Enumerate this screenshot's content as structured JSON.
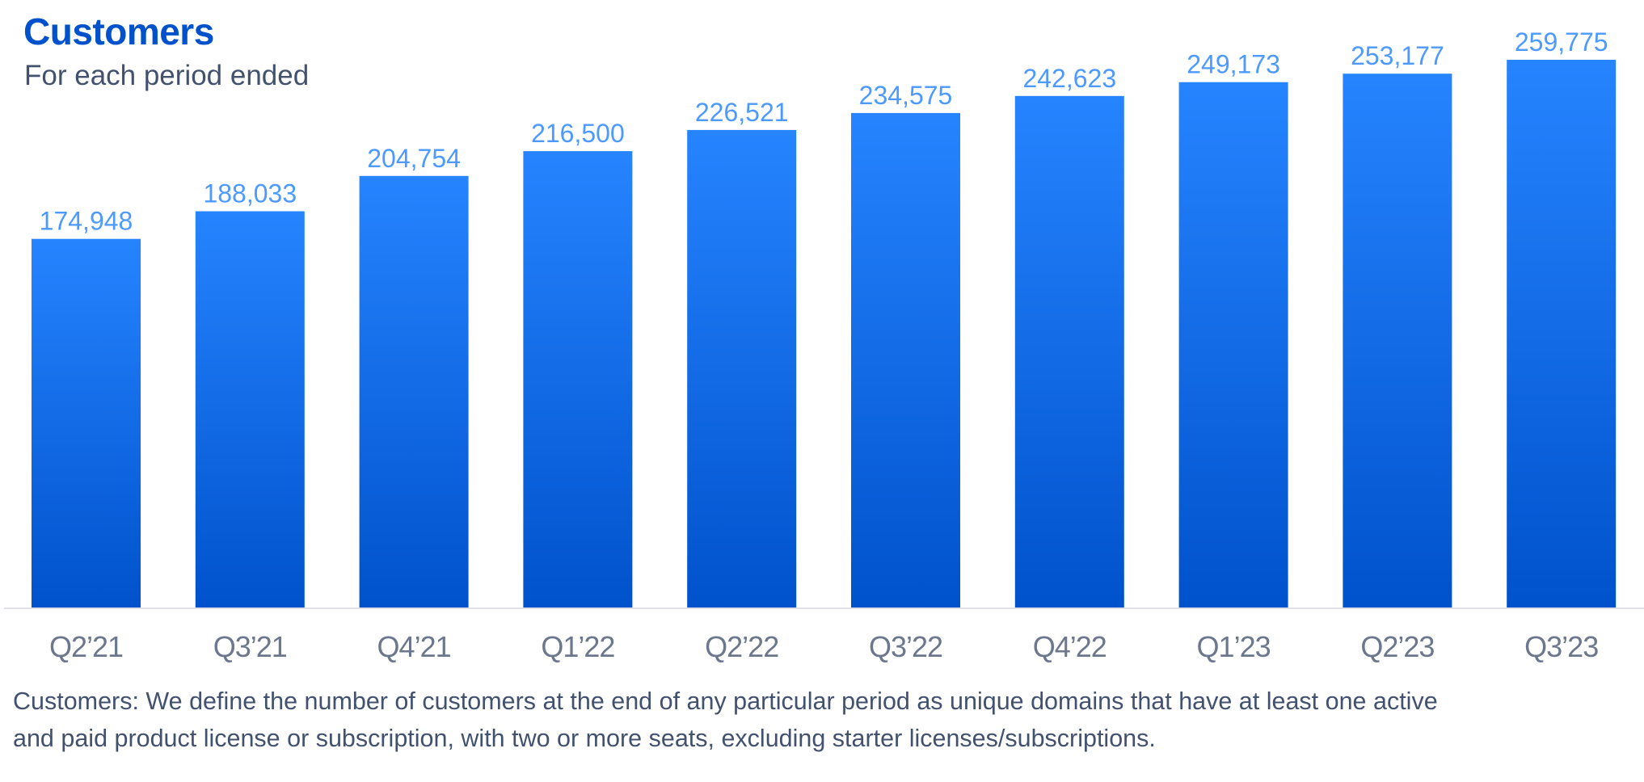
{
  "header": {
    "title": "Customers",
    "subtitle": "For each period ended"
  },
  "footnote": {
    "line1": "Customers: We define the number of customers at the end of any particular period as unique domains that have at least one active",
    "line2": "and paid product license or subscription, with two or more seats, excluding starter licenses/subscriptions."
  },
  "colors": {
    "title": "#0052CC",
    "bar_top": "#2684FF",
    "bar_bottom": "#0052CC",
    "value_label": "#4C9AFF",
    "tick_label": "#6B778C",
    "axis_line": "#DFE1E6",
    "footnote": "#42526E"
  },
  "chart_data": {
    "type": "bar",
    "title": "Customers",
    "subtitle": "For each period ended",
    "xlabel": "",
    "ylabel": "",
    "ylim": [
      0,
      260000
    ],
    "grid": false,
    "legend": "none",
    "categories": [
      "Q2’21",
      "Q3’21",
      "Q4’21",
      "Q1’22",
      "Q2’22",
      "Q3’22",
      "Q4’22",
      "Q1’23",
      "Q2’23",
      "Q3’23"
    ],
    "values": [
      174948,
      188033,
      204754,
      216500,
      226521,
      234575,
      242623,
      249173,
      253177,
      259775
    ],
    "value_labels": [
      "174,948",
      "188,033",
      "204,754",
      "216,500",
      "226,521",
      "234,575",
      "242,623",
      "249,173",
      "253,177",
      "259,775"
    ]
  }
}
